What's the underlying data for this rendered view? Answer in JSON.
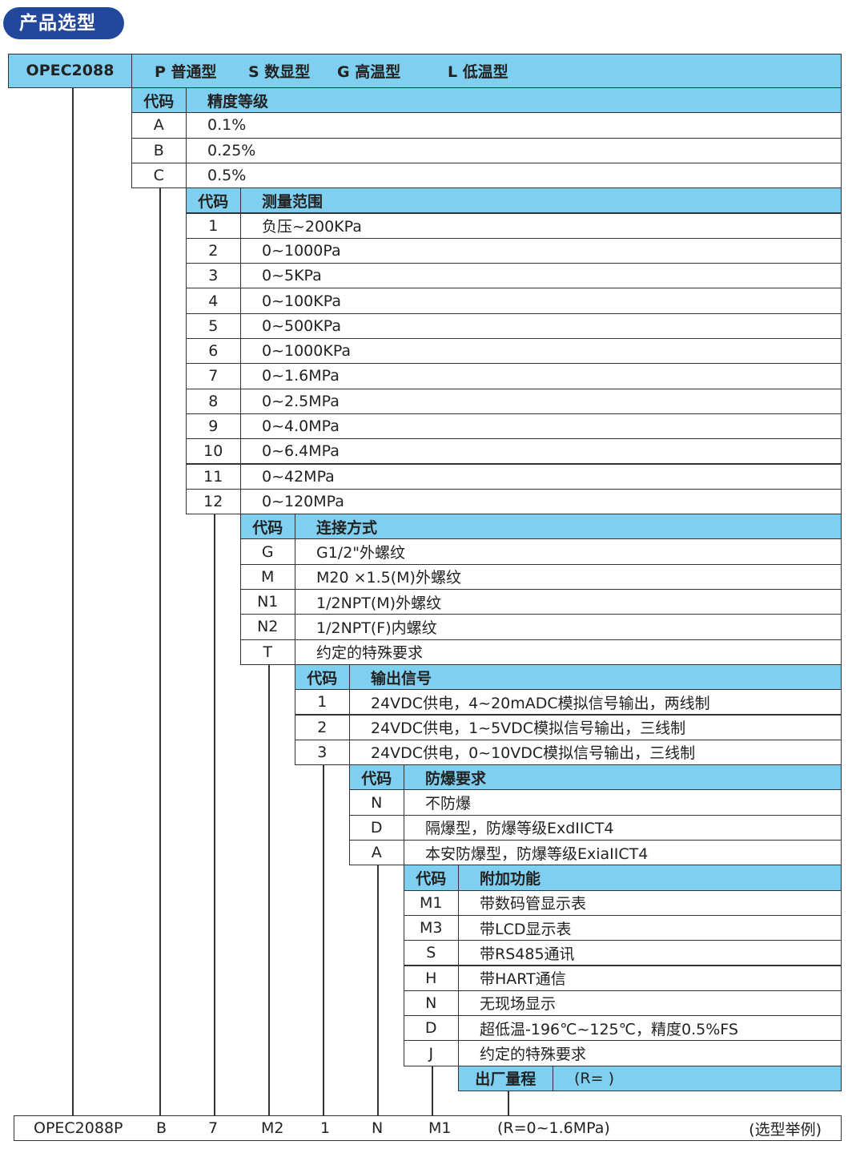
{
  "title": "产品选型",
  "colors": {
    "header_bg": "#7fd0f0",
    "badge_bg": "#21489a"
  },
  "model": {
    "name": "OPEC2088",
    "types": [
      "P 普通型",
      "S 数显型",
      "G 高温型",
      "L 低温型"
    ]
  },
  "sections": [
    {
      "code_label": "代码",
      "title": "精度等级",
      "rows": [
        [
          "A",
          "0.1%"
        ],
        [
          "B",
          "0.25%"
        ],
        [
          "C",
          "0.5%"
        ]
      ]
    },
    {
      "code_label": "代码",
      "title": "测量范围",
      "rows": [
        [
          "1",
          "负压~200KPa"
        ],
        [
          "2",
          "0~1000Pa"
        ],
        [
          "3",
          "0~5KPa"
        ],
        [
          "4",
          "0~100KPa"
        ],
        [
          "5",
          "0~500KPa"
        ],
        [
          "6",
          "0~1000KPa"
        ],
        [
          "7",
          "0~1.6MPa"
        ],
        [
          "8",
          "0~2.5MPa"
        ],
        [
          "9",
          "0~4.0MPa"
        ],
        [
          "10",
          "0~6.4MPa"
        ],
        [
          "11",
          "0~42MPa"
        ],
        [
          "12",
          "0~120MPa"
        ]
      ]
    },
    {
      "code_label": "代码",
      "title": "连接方式",
      "rows": [
        [
          "G",
          "G1/2\"外螺纹"
        ],
        [
          "M",
          "M20 ×1.5(M)外螺纹"
        ],
        [
          "N1",
          "1/2NPT(M)外螺纹"
        ],
        [
          "N2",
          "1/2NPT(F)内螺纹"
        ],
        [
          "T",
          "约定的特殊要求"
        ]
      ]
    },
    {
      "code_label": "代码",
      "title": "输出信号",
      "rows": [
        [
          "1",
          "24VDC供电，4~20mADC模拟信号输出，两线制"
        ],
        [
          "2",
          "24VDC供电，1~5VDC模拟信号输出，三线制"
        ],
        [
          "3",
          "24VDC供电，0~10VDC模拟信号输出，三线制"
        ]
      ]
    },
    {
      "code_label": "代码",
      "title": "防爆要求",
      "rows": [
        [
          "N",
          "不防爆"
        ],
        [
          "D",
          "隔爆型，防爆等级ExdIICT4"
        ],
        [
          "A",
          "本安防爆型，防爆等级ExiaIICT4"
        ]
      ]
    },
    {
      "code_label": "代码",
      "title": "附加功能",
      "rows": [
        [
          "M1",
          "带数码管显示表"
        ],
        [
          "M3",
          "带LCD显示表"
        ],
        [
          "S",
          "带RS485通讯"
        ],
        [
          "H",
          "带HART通信"
        ],
        [
          "N",
          "无现场显示"
        ],
        [
          "D",
          "超低温-196℃~125℃，精度0.5%FS"
        ],
        [
          "J",
          "约定的特殊要求"
        ]
      ]
    }
  ],
  "factory_range": {
    "label": "出厂量程",
    "value": "(R=            )"
  },
  "example": {
    "parts": [
      "OPEC2088P",
      "B",
      "7",
      "M2",
      "1",
      "N",
      "M1",
      "(R=0~1.6MPa)"
    ],
    "note": "(选型举例)"
  }
}
